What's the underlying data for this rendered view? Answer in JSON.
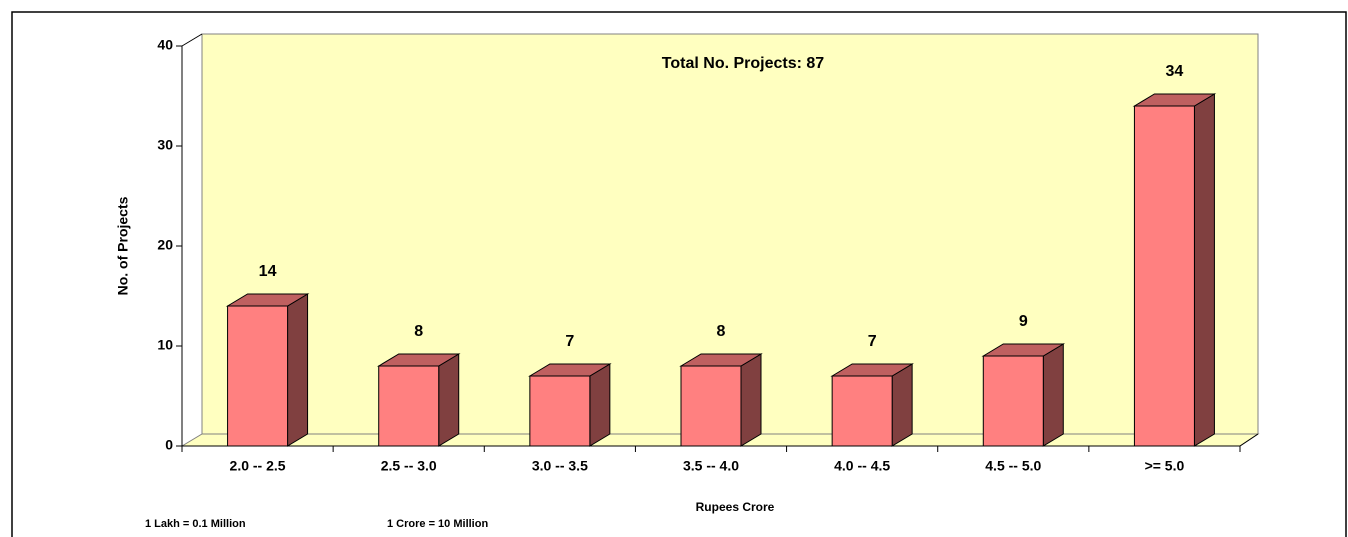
{
  "chart_data": {
    "type": "bar3d",
    "title": "Total No. Projects: 87",
    "y_label": "No. of Projects",
    "x_label": "Rupees Crore",
    "annotations": [
      "1 Lakh = 0.1 Million",
      "1 Crore = 10 Million"
    ],
    "categories": [
      "2.0 -- 2.5",
      "2.5 -- 3.0",
      "3.0 -- 3.5",
      "3.5 -- 4.0",
      "4.0 -- 4.5",
      "4.5 -- 5.0",
      ">= 5.0"
    ],
    "values": [
      14,
      8,
      7,
      8,
      7,
      9,
      34
    ],
    "color": "#ff8080",
    "ylim": [
      0,
      40
    ],
    "yticks": [
      0,
      10,
      20,
      30,
      40
    ],
    "grid": false
  }
}
